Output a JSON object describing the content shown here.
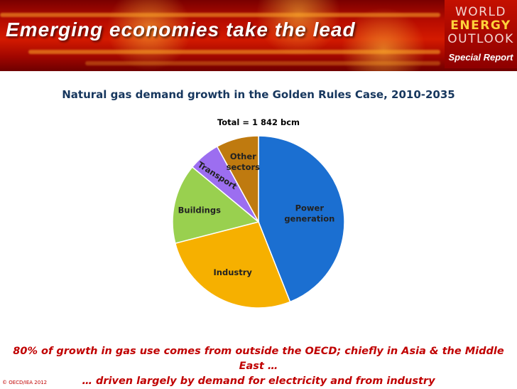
{
  "header": {
    "title": "Emerging economies take the lead",
    "logo": {
      "line1": "WORLD",
      "line2": "ENERGY",
      "line3": "OUTLOOK",
      "subtitle": "Special Report"
    },
    "colors": {
      "banner": "#b80c00",
      "logo_accent": "#ffd23a"
    }
  },
  "chart_data": {
    "type": "pie",
    "title": "Natural gas demand growth in the Golden Rules Case, 2010-2035",
    "subtitle": "Total = 1 842 bcm",
    "start_angle_deg": 0,
    "direction": "clockwise",
    "slices": [
      {
        "label": "Power generation",
        "label_lines": [
          "Power",
          "generation"
        ],
        "value": 44,
        "color": "#1b6fd1"
      },
      {
        "label": "Industry",
        "label_lines": [
          "Industry"
        ],
        "value": 27,
        "color": "#f6b000"
      },
      {
        "label": "Buildings",
        "label_lines": [
          "Buildings"
        ],
        "value": 15,
        "color": "#99d04f"
      },
      {
        "label": "Transport",
        "label_lines": [
          "Transport"
        ],
        "value": 6,
        "color": "#9c6ef0"
      },
      {
        "label": "Other sectors",
        "label_lines": [
          "Other",
          "sectors"
        ],
        "value": 8,
        "color": "#bf7a0f"
      }
    ],
    "units": "%"
  },
  "footer": {
    "line1": "80% of growth in gas use comes from outside the OECD; chiefly in Asia & the Middle East …",
    "line2": "… driven largely by demand for electricity and from industry",
    "copyright": "© OECD/IEA 2012"
  }
}
